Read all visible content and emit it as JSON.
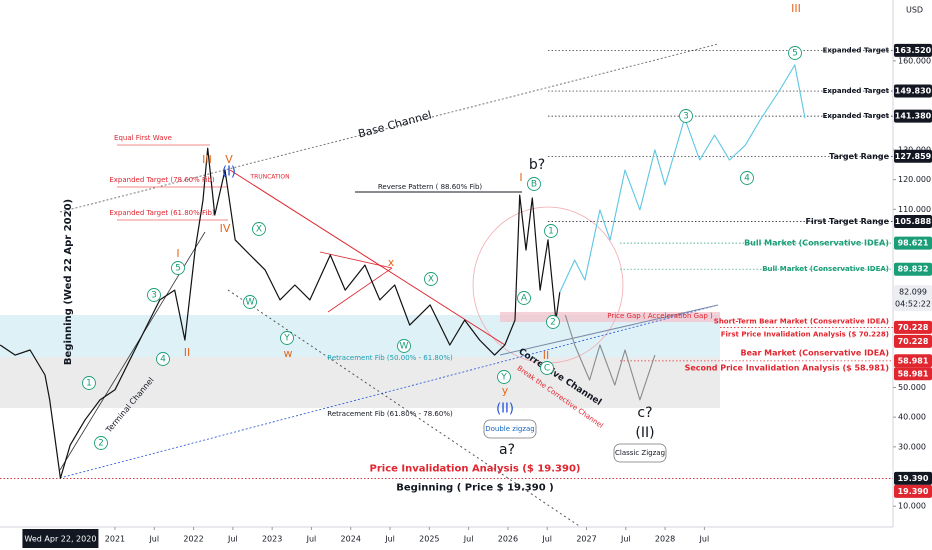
{
  "chart_data": {
    "type": "line",
    "currency": "USD",
    "axis_title": "Beginning (Wed 22 Apr 2020)",
    "xlim": [
      2019.537,
      2030.9
    ],
    "ylim": [
      3,
      180.5
    ],
    "xticks": [
      2021,
      {
        "value": 2021.5,
        "label": "Jul"
      },
      2022,
      {
        "value": 2022.5,
        "label": "Jul"
      },
      2023,
      {
        "value": 2023.5,
        "label": "Jul"
      },
      2024,
      {
        "value": 2024.5,
        "label": "Jul"
      },
      2025,
      {
        "value": 2025.5,
        "label": "Jul"
      },
      2026,
      {
        "value": 2026.5,
        "label": "Jul"
      },
      2027,
      {
        "value": 2027.5,
        "label": "Jul"
      },
      2028,
      {
        "value": 2028.5,
        "label": "Jul"
      }
    ],
    "x_marker": {
      "value": 2020.306,
      "label": "Wed Apr 22, 2020"
    },
    "yticks": [
      {
        "value": 10,
        "label": "10.000"
      },
      {
        "value": 30,
        "label": "30.000"
      },
      {
        "value": 40,
        "label": "40.000"
      },
      {
        "value": 50,
        "label": "50.000"
      },
      {
        "value": 110,
        "label": "110.000"
      },
      {
        "value": 120,
        "label": "120.000"
      },
      {
        "value": 130,
        "label": "130.000"
      },
      {
        "value": 160,
        "label": "160.000"
      }
    ],
    "series": [
      {
        "color": "#111111",
        "x": [
          2019.54,
          2019.73,
          2019.92,
          2020.11,
          2020.17,
          2020.24,
          2020.306,
          2020.43,
          2020.62,
          2020.81,
          2021.0,
          2021.19,
          2021.38,
          2021.57,
          2021.76,
          2021.89,
          2022.02,
          2022.12,
          2022.18,
          2022.27,
          2022.4,
          2022.53,
          2022.72,
          2022.91,
          2023.1,
          2023.29,
          2023.48,
          2023.74,
          2023.93,
          2024.18,
          2024.37,
          2024.56,
          2024.75,
          2025.01,
          2025.26,
          2025.45,
          2025.64,
          2025.83,
          2025.96,
          2026.09,
          2026.15,
          2026.23,
          2026.31,
          2026.41,
          2026.51,
          2026.61,
          2026.66
        ],
        "values": [
          64.3,
          60.9,
          62.6,
          54.2,
          45.8,
          32.3,
          19.39,
          30.6,
          39.1,
          45.8,
          49.2,
          59.3,
          69.4,
          79.5,
          82.8,
          66.0,
          96.3,
          113.1,
          130.6,
          108.1,
          123.2,
          99.7,
          94.6,
          89.6,
          79.5,
          84.5,
          79.5,
          94.6,
          82.8,
          91.2,
          79.5,
          84.5,
          71.0,
          77.8,
          64.3,
          72.7,
          66.0,
          60.9,
          64.3,
          72.7,
          114.8,
          96.3,
          113.8,
          82.8,
          99.7,
          72.7,
          82.099
        ]
      },
      {
        "color": "#5cc6e3",
        "x": [
          2026.66,
          2026.85,
          2026.98,
          2027.17,
          2027.3,
          2027.49,
          2027.68,
          2027.87,
          2028.0,
          2028.25,
          2028.44,
          2028.63,
          2028.82,
          2029.02,
          2029.21,
          2029.46,
          2029.65,
          2029.78
        ],
        "values": [
          82.099,
          92.9,
          86.2,
          109.8,
          99.7,
          123.2,
          109.8,
          130.0,
          118.2,
          140.7,
          126.6,
          135.0,
          126.6,
          131.6,
          140.1,
          150.2,
          158.6,
          140.7
        ]
      },
      {
        "color": "#8a8a8a",
        "x": [
          2026.73,
          2026.85,
          2027.04,
          2027.17,
          2027.36,
          2027.49,
          2027.68,
          2027.87
        ],
        "values": [
          74.4,
          64.3,
          52.5,
          64.3,
          50.8,
          62.6,
          45.8,
          60.9
        ]
      }
    ],
    "current_price": {
      "value": 82.099,
      "label": "82.099",
      "countdown": "04:52:22"
    },
    "levels": [
      {
        "name": "Expanded Target",
        "value": 163.52,
        "value_label": "163.520",
        "color": "#131722",
        "text_color": "#131722"
      },
      {
        "name": "Expanded Target",
        "value": 149.83,
        "value_label": "149.830",
        "color": "#131722",
        "text_color": "#131722"
      },
      {
        "name": "Expanded Target",
        "value": 141.38,
        "value_label": "141.380",
        "color": "#131722",
        "text_color": "#131722"
      },
      {
        "name": "Target Range",
        "value": 127.859,
        "value_label": "127.859",
        "color": "#131722",
        "text_color": "#131722"
      },
      {
        "name": "First Target Range",
        "value": 105.888,
        "value_label": "105.888",
        "color": "#131722",
        "text_color": "#131722"
      },
      {
        "name": "Bull Market (Conservative IDEA)",
        "value": 98.621,
        "value_label": "98.621",
        "color": "#1b9e77",
        "text_color": "#1b9e77"
      },
      {
        "name": "Bull Market (Conservative IDEA)",
        "value": 89.832,
        "value_label": "89.832",
        "color": "#1b9e77",
        "text_color": "#1b9e77"
      },
      {
        "name": "Short-Term Bear Market (Conservative IDEA)",
        "value": 70.228,
        "value_label": "70.228",
        "color": "#e0262f",
        "text_color": "#e0262f"
      },
      {
        "name": "First Price Invalidation Analysis ($ 70.228)",
        "value": 70.228,
        "value_label": "70.228",
        "color": "#e0262f",
        "text_color": "#e0262f"
      },
      {
        "name": "Bear Market (Conservative IDEA)",
        "value": 58.981,
        "value_label": "58.981",
        "color": "#e0262f",
        "text_color": "#e0262f"
      },
      {
        "name": "Second Price Invalidation Analysis ($ 58.981)",
        "value": 58.981,
        "value_label": "58.981",
        "color": "#e0262f",
        "text_color": "#e0262f"
      },
      {
        "name": "Price Invalidation Analysis ($ 19.390)",
        "value": 19.39,
        "value_label": "19.390",
        "color": "#131722",
        "text_color": "#e0262f"
      },
      {
        "name": "Beginning ( Price $ 19.390 )",
        "value": 19.39,
        "value_label": "19.390",
        "color": "#e0262f",
        "text_color": "#131722"
      }
    ],
    "annotations": [
      {
        "text": "Base Channel",
        "color": "#131722"
      },
      {
        "text": "Terminal Channel",
        "color": "#131722"
      },
      {
        "text": "Corrective Channel",
        "color": "#131722"
      },
      {
        "text": "Break the Corrective Channel",
        "color": "#e0262f"
      },
      {
        "text": "Equal First Wave",
        "color": "#e0262f"
      },
      {
        "text": "Expanded Target (78.60% Fib)",
        "color": "#e0262f"
      },
      {
        "text": "Expanded Target (61.80% Fib)",
        "color": "#e0262f"
      },
      {
        "text": "TRUNCATION",
        "color": "#e0262f"
      },
      {
        "text": "Reverse Pattern ( 88.60% Fib)",
        "color": "#131722"
      },
      {
        "text": "Retracement Fib (50.00% - 61.80%)",
        "color": "#1a9fb5"
      },
      {
        "text": "Retracement Fib (61.80% - 78.60%)",
        "color": "#131722"
      },
      {
        "text": "Price Gap ( Acceleration Gap )",
        "color": "#e0262f"
      },
      {
        "text": "Double zigzag",
        "color": "#1565c0",
        "style": "boxed"
      },
      {
        "text": "Classic Zigzag",
        "color": "#131722",
        "style": "boxed"
      },
      {
        "text": "a?",
        "color": "#131722"
      },
      {
        "text": "b?",
        "color": "#131722"
      },
      {
        "text": "c?",
        "color": "#131722"
      },
      {
        "text": "(II)",
        "color": "#131722"
      },
      {
        "text": "(II)",
        "color": "#1e4fd8"
      },
      {
        "text": "(I)",
        "color": "#1e4fd8"
      },
      {
        "text": "III",
        "color": "#e8651a"
      },
      {
        "text": "V",
        "color": "#e8651a"
      },
      {
        "text": "IV",
        "color": "#e8651a"
      },
      {
        "text": "I",
        "color": "#e8651a"
      },
      {
        "text": "II",
        "color": "#e8651a"
      },
      {
        "text": "III",
        "color": "#e8651a"
      },
      {
        "text": "I",
        "color": "#e8651a"
      },
      {
        "text": "II",
        "color": "#e8651a"
      },
      {
        "text": "w",
        "color": "#e8651a"
      },
      {
        "text": "x",
        "color": "#e8651a"
      },
      {
        "text": "y",
        "color": "#e8651a"
      },
      {
        "text": "1",
        "color": "#1b9e77",
        "style": "circled"
      },
      {
        "text": "2",
        "color": "#1b9e77",
        "style": "circled"
      },
      {
        "text": "3",
        "color": "#1b9e77",
        "style": "circled"
      },
      {
        "text": "4",
        "color": "#1b9e77",
        "style": "circled"
      },
      {
        "text": "5",
        "color": "#1b9e77",
        "style": "circled"
      },
      {
        "text": "X",
        "color": "#1b9e77",
        "style": "circled"
      },
      {
        "text": "W",
        "color": "#1b9e77",
        "style": "circled"
      },
      {
        "text": "Y",
        "color": "#1b9e77",
        "style": "circled"
      },
      {
        "text": "W",
        "color": "#1b9e77",
        "style": "circled"
      },
      {
        "text": "X",
        "color": "#1b9e77",
        "style": "circled"
      },
      {
        "text": "Y",
        "color": "#1b9e77",
        "style": "circled"
      },
      {
        "text": "A",
        "color": "#1b9e77",
        "style": "circled"
      },
      {
        "text": "B",
        "color": "#1b9e77",
        "style": "circled"
      },
      {
        "text": "C",
        "color": "#1b9e77",
        "style": "circled"
      },
      {
        "text": "1",
        "color": "#1b9e77",
        "style": "circled"
      },
      {
        "text": "2",
        "color": "#1b9e77",
        "style": "circled"
      },
      {
        "text": "3",
        "color": "#1b9e77",
        "style": "circled"
      },
      {
        "text": "4",
        "color": "#1b9e77",
        "style": "circled"
      },
      {
        "text": "5",
        "color": "#1b9e77",
        "style": "circled"
      }
    ]
  }
}
